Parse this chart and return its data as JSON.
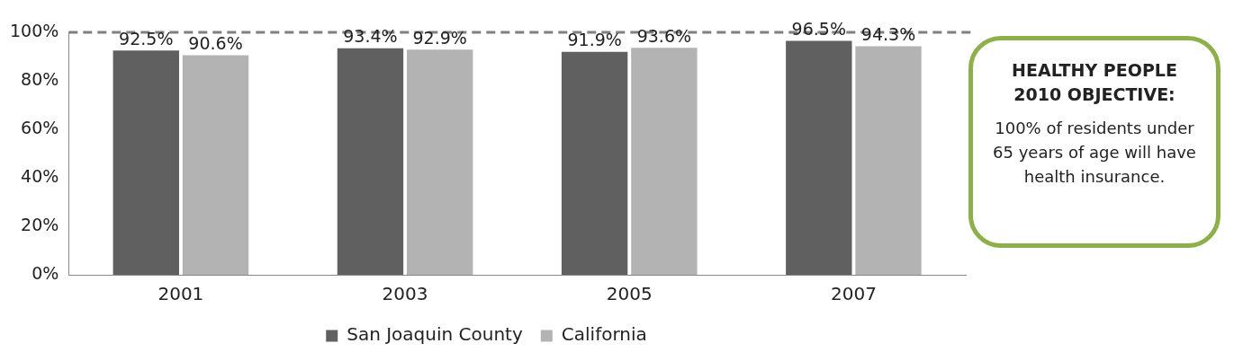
{
  "chart_data": {
    "type": "bar",
    "categories": [
      "2001",
      "2003",
      "2005",
      "2007"
    ],
    "series": [
      {
        "name": "San Joaquin County",
        "color": "#606060",
        "values": [
          92.5,
          93.4,
          91.9,
          96.5
        ],
        "value_labels": [
          "92.5%",
          "93.4%",
          "91.9%",
          "96.5%"
        ]
      },
      {
        "name": "California",
        "color": "#b3b3b3",
        "values": [
          90.6,
          92.9,
          93.6,
          94.3
        ],
        "value_labels": [
          "90.6%",
          "92.9%",
          "93.6%",
          "94.3%"
        ]
      }
    ],
    "ylim": [
      0,
      100
    ],
    "yticks": [
      {
        "value": 0,
        "label": "0%"
      },
      {
        "value": 20,
        "label": "20%"
      },
      {
        "value": 40,
        "label": "40%"
      },
      {
        "value": 60,
        "label": "60%"
      },
      {
        "value": 80,
        "label": "80%"
      },
      {
        "value": 100,
        "label": "100%"
      }
    ],
    "ref_lines": [
      {
        "axis": "y",
        "value": 100,
        "label": null,
        "color": "#808080",
        "line_style": "dashed"
      }
    ],
    "grid": false,
    "legend": "bottom",
    "annotations": [
      "HEALTHY PEOPLE 2010 OBJECTIVE:",
      "100% of residents under 65 years of age will have health insurance."
    ]
  }
}
